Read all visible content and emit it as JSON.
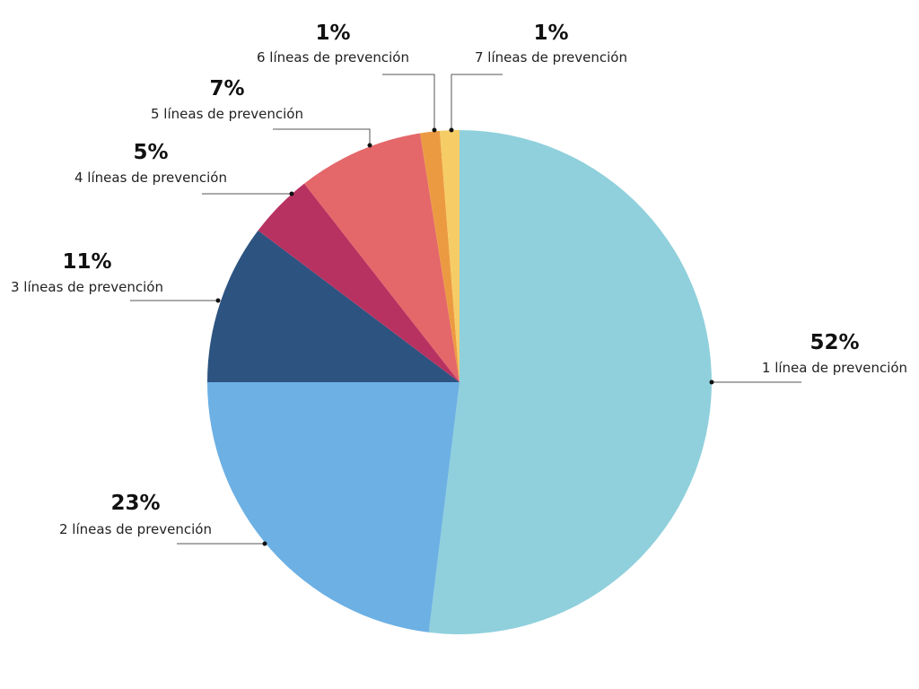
{
  "chart_data": {
    "type": "pie",
    "title": "",
    "start_angle_deg": 0,
    "direction": "clockwise",
    "slices": [
      {
        "label": "1 línea de prevención",
        "value": 52,
        "display": "52%",
        "color": "#8fd0dc"
      },
      {
        "label": "2 líneas de prevención",
        "value": 23,
        "display": "23%",
        "color": "#6cb0e4"
      },
      {
        "label": "3 líneas de prevención",
        "value": 11,
        "display": "11%",
        "color": "#2d5380"
      },
      {
        "label": "4 líneas de prevención",
        "value": 5,
        "display": "5%",
        "color": "#b83261"
      },
      {
        "label": "5 líneas de prevención",
        "value": 7,
        "display": "7%",
        "color": "#e4676a"
      },
      {
        "label": "6 líneas de prevención",
        "value": 1,
        "display": "1%",
        "color": "#ec9a42"
      },
      {
        "label": "7 líneas de prevención",
        "value": 1,
        "display": "1%",
        "color": "#f6cc66"
      }
    ],
    "legend": "none",
    "labels": "outside-with-leader-lines"
  }
}
